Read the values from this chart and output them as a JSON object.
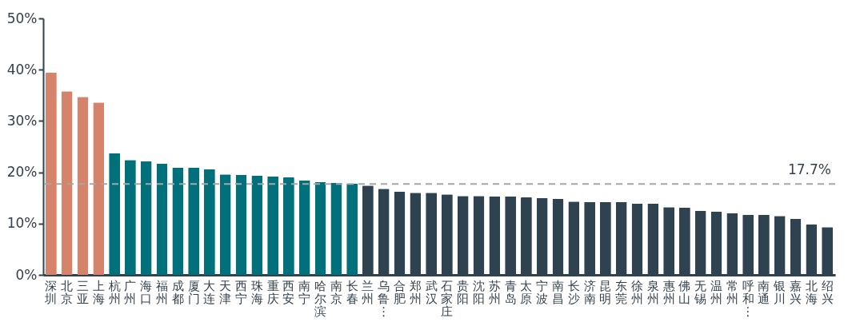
{
  "chart_data": {
    "type": "bar",
    "categories": [
      "深圳",
      "北京",
      "三亚",
      "上海",
      "杭州",
      "广州",
      "海口",
      "福州",
      "成都",
      "厦门",
      "大连",
      "天津",
      "西宁",
      "珠海",
      "重庆",
      "西安",
      "南宁",
      "哈尔滨",
      "南京",
      "长春",
      "兰州",
      "乌鲁⋮",
      "合肥",
      "郑州",
      "武汉",
      "石家庄",
      "贵阳",
      "沈阳",
      "苏州",
      "青岛",
      "太原",
      "宁波",
      "南昌",
      "长沙",
      "济南",
      "昆明",
      "东莞",
      "徐州",
      "泉州",
      "惠州",
      "佛山",
      "无锡",
      "温州",
      "常州",
      "呼和⋮",
      "南通",
      "银川",
      "嘉兴",
      "北海",
      "绍兴"
    ],
    "values": [
      39.4,
      35.8,
      34.7,
      33.6,
      23.7,
      22.4,
      22.1,
      21.7,
      20.9,
      20.9,
      20.6,
      19.6,
      19.5,
      19.3,
      19.2,
      19.0,
      18.4,
      18.1,
      17.9,
      17.8,
      17.4,
      16.8,
      16.2,
      16.0,
      16.0,
      15.7,
      15.4,
      15.4,
      15.3,
      15.3,
      15.1,
      15.0,
      14.8,
      14.3,
      14.2,
      14.2,
      14.2,
      13.9,
      13.9,
      13.2,
      13.1,
      12.5,
      12.3,
      12.0,
      11.7,
      11.7,
      11.5,
      10.9,
      9.8,
      9.3
    ],
    "colors": [
      "#d5836a",
      "#d5836a",
      "#d5836a",
      "#d5836a",
      "#00707a",
      "#00707a",
      "#00707a",
      "#00707a",
      "#00707a",
      "#00707a",
      "#00707a",
      "#00707a",
      "#00707a",
      "#00707a",
      "#00707a",
      "#00707a",
      "#00707a",
      "#00707a",
      "#00707a",
      "#00707a",
      "#2e4250",
      "#2e4250",
      "#2e4250",
      "#2e4250",
      "#2e4250",
      "#2e4250",
      "#2e4250",
      "#2e4250",
      "#2e4250",
      "#2e4250",
      "#2e4250",
      "#2e4250",
      "#2e4250",
      "#2e4250",
      "#2e4250",
      "#2e4250",
      "#2e4250",
      "#2e4250",
      "#2e4250",
      "#2e4250",
      "#2e4250",
      "#2e4250",
      "#2e4250",
      "#2e4250",
      "#2e4250",
      "#2e4250",
      "#2e4250",
      "#2e4250",
      "#2e4250",
      "#2e4250"
    ],
    "ylim": [
      0,
      50
    ],
    "yticks": [
      {
        "value": 0,
        "label": "0%"
      },
      {
        "value": 10,
        "label": "10%"
      },
      {
        "value": 20,
        "label": "20%"
      },
      {
        "value": 30,
        "label": "30%"
      },
      {
        "value": 40,
        "label": "40%"
      },
      {
        "value": 50,
        "label": "50%"
      }
    ],
    "grid": false,
    "ref_lines": [
      {
        "axis": "y",
        "value": 17.7,
        "label": "17.7%",
        "color": "#a6a6a6",
        "line_style": "dashed"
      }
    ]
  }
}
